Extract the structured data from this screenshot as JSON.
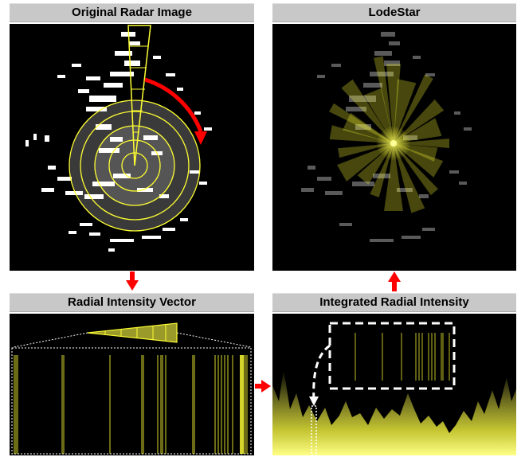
{
  "panels": {
    "original": {
      "title": "Original Radar Image"
    },
    "lodestar": {
      "title": "LodeStar"
    },
    "radial": {
      "title": "Radial Intensity Vector"
    },
    "integrated": {
      "title": "Integrated Radial Intensity"
    }
  },
  "colors": {
    "title_bg": "#c8c8c8",
    "panel_bg": "#000000",
    "accent_yellow": "#ffff33",
    "arrow_red": "#ff0000",
    "echo_white": "#ffffff",
    "echo_gray": "#5a5a5a"
  },
  "icons": {
    "down_arrow": "arrow-down-icon",
    "up_arrow": "arrow-up-icon",
    "right_arrow": "arrow-right-icon"
  }
}
